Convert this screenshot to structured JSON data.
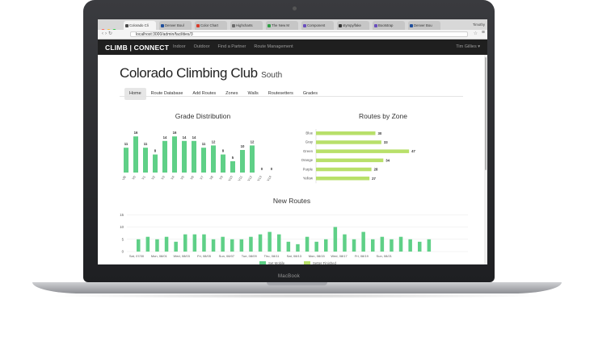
{
  "device": {
    "label": "MacBook"
  },
  "browser": {
    "tabs": [
      {
        "label": "Colorado Cli",
        "favicon_color": "#4a4a4a",
        "active": true
      },
      {
        "label": "Denver Boul",
        "favicon_color": "#1f4e9c"
      },
      {
        "label": "Color Chart",
        "favicon_color": "#d83b2a"
      },
      {
        "label": "Highcharts",
        "favicon_color": "#6b6b6b"
      },
      {
        "label": "The New M",
        "favicon_color": "#2f9e44"
      },
      {
        "label": "Component",
        "favicon_color": "#6a4fbd"
      },
      {
        "label": "stympy/fake",
        "favicon_color": "#333333"
      },
      {
        "label": "Bootstrap",
        "favicon_color": "#6a4fbd"
      },
      {
        "label": "Denver Bou",
        "favicon_color": "#1f4e9c"
      }
    ],
    "profile_name": "Timothy",
    "url": "localhost:3000/admin/facilities/3",
    "dot_colors": [
      "#ff5f57",
      "#febc2e",
      "#28c840"
    ]
  },
  "navbar": {
    "brand": "CLIMB | CONNECT",
    "links": [
      "Indoor",
      "Outdoor",
      "Find a Partner",
      "Route Management"
    ],
    "user": "Tim Gillies ▾"
  },
  "page": {
    "title": "Colorado Climbing Club",
    "subtitle": "South",
    "subnav": [
      "Home",
      "Route Database",
      "Add Routes",
      "Zones",
      "Walls",
      "Routesetters",
      "Grades"
    ],
    "active_subnav": "Home"
  },
  "colors": {
    "bar_green": "#5fd087",
    "bar_lime": "#b8e06a",
    "navbar": "#1f1f1f"
  },
  "chart_data": [
    {
      "type": "bar",
      "title": "Grade Distribution",
      "categories": [
        "VB",
        "V0",
        "V1",
        "V2",
        "V3",
        "V4",
        "V5",
        "V6",
        "V7",
        "V8",
        "V9",
        "V10",
        "V11",
        "V12",
        "V13",
        "V14"
      ],
      "values": [
        11,
        16,
        11,
        8,
        14,
        16,
        14,
        14,
        11,
        12,
        8,
        5,
        10,
        12,
        0,
        0
      ],
      "color": "#5fd087"
    },
    {
      "type": "bar",
      "orientation": "horizontal",
      "title": "Routes by Zone",
      "categories": [
        "Blue",
        "Gray",
        "Green",
        "Orange",
        "Purple",
        "Yellow"
      ],
      "values": [
        30,
        33,
        47,
        34,
        28,
        27
      ],
      "color": "#b8e06a"
    },
    {
      "type": "bar",
      "title": "New Routes",
      "yticks": [
        0,
        5,
        10,
        15
      ],
      "ylim": [
        0,
        15
      ],
      "xticklabels": [
        "Sat, 07/30",
        "Mon, 08/01",
        "Wed, 08/03",
        "Fri, 08/05",
        "Sun, 08/07",
        "Tue, 08/09",
        "Thu, 08/11",
        "Sat, 08/13",
        "Mon, 08/15",
        "Wed, 08/17",
        "Fri, 08/19",
        "Sun, 08/21"
      ],
      "series": [
        {
          "name": "Set Mobile",
          "color": "#5fd087",
          "values": [
            5,
            6,
            5,
            6,
            4,
            7,
            7,
            7,
            5,
            6,
            5,
            5,
            6,
            7,
            8,
            7,
            4,
            3,
            6,
            4,
            5,
            10,
            7,
            5,
            8,
            5,
            6,
            5,
            6,
            5,
            4,
            5
          ]
        },
        {
          "name": "Setter Finished",
          "color": "#b8e06a",
          "values": [
            0,
            0,
            0,
            0,
            0,
            0,
            0,
            0,
            0,
            0,
            0,
            0,
            0,
            0,
            0,
            0,
            0,
            0,
            0,
            0,
            0,
            0,
            0,
            0,
            0,
            0,
            0,
            0,
            0,
            0,
            0,
            0
          ]
        }
      ]
    }
  ]
}
